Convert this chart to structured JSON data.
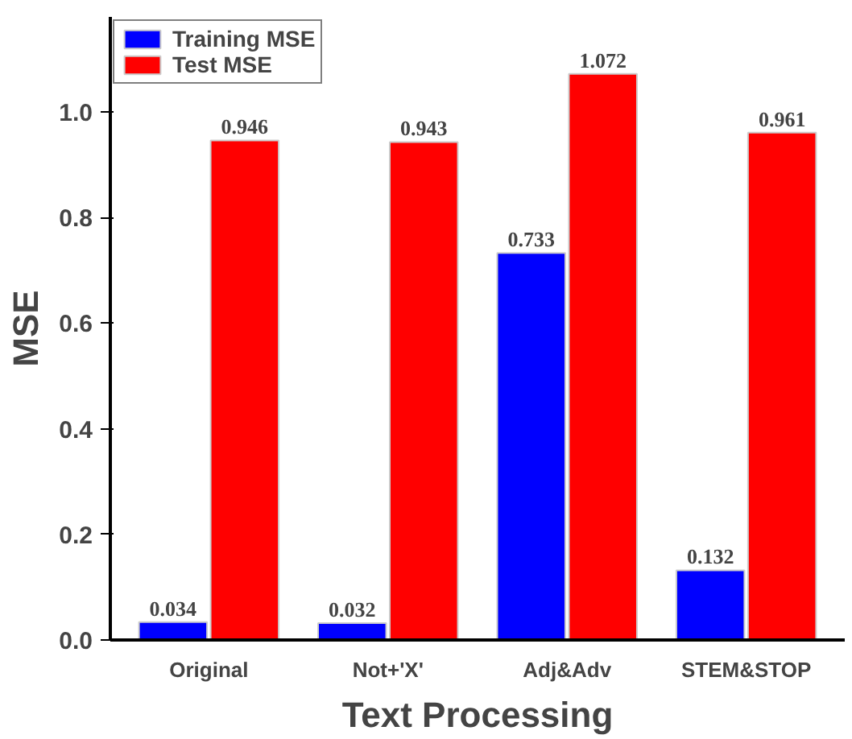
{
  "chart_data": {
    "type": "bar",
    "xlabel": "Text Processing",
    "ylabel": "MSE",
    "categories": [
      "Original",
      "Not+'X'",
      "Adj&Adv",
      "STEM&STOP"
    ],
    "series": [
      {
        "name": "Training MSE",
        "color": "#0000ff",
        "values": [
          0.034,
          0.032,
          0.733,
          0.132
        ]
      },
      {
        "name": "Test MSE",
        "color": "#ff0000",
        "values": [
          0.946,
          0.943,
          1.072,
          0.961
        ]
      }
    ],
    "ylim": [
      0,
      1.18
    ],
    "yticks": [
      {
        "value": 0,
        "label": "0.0"
      },
      0.2,
      0.4,
      0.6,
      0.8,
      {
        "value": 1,
        "label": "1.0"
      }
    ],
    "data_labels": true,
    "legend": "top left",
    "grid": false
  }
}
